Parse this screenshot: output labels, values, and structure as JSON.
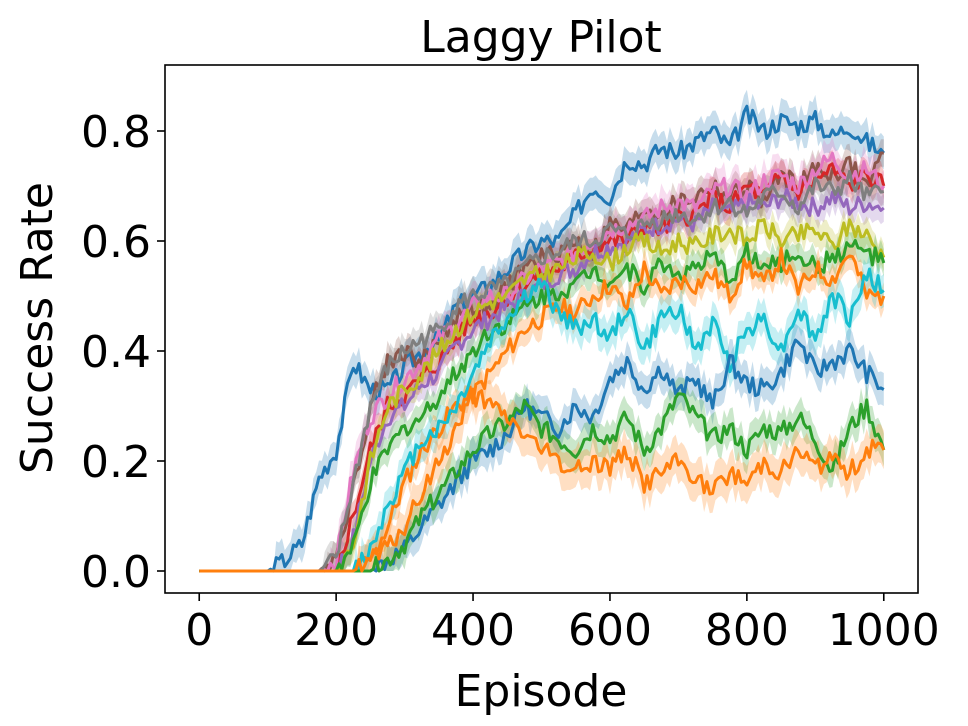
{
  "chart_data": {
    "type": "line",
    "title": "Laggy Pilot",
    "xlabel": "Episode",
    "ylabel": "Success Rate",
    "xlim": [
      -50,
      1050
    ],
    "ylim": [
      -0.04,
      0.92
    ],
    "xticks": [
      0,
      200,
      400,
      600,
      800,
      1000
    ],
    "xtick_labels": [
      "0",
      "200",
      "400",
      "600",
      "800",
      "1000"
    ],
    "yticks": [
      0.0,
      0.2,
      0.4,
      0.6,
      0.8
    ],
    "ytick_labels": [
      "0.0",
      "0.2",
      "0.4",
      "0.6",
      "0.8"
    ],
    "grid": false,
    "legend": "none",
    "shaded_band": "±std",
    "x": [
      0,
      50,
      100,
      125,
      150,
      175,
      200,
      225,
      250,
      275,
      300,
      325,
      350,
      375,
      400,
      425,
      450,
      475,
      500,
      525,
      550,
      575,
      600,
      625,
      650,
      675,
      700,
      725,
      750,
      775,
      800,
      825,
      850,
      875,
      900,
      925,
      950,
      975,
      1000
    ],
    "series": [
      {
        "color": "#1f77b4",
        "values": [
          0,
          0,
          0,
          0.02,
          0.05,
          0.17,
          0.22,
          0.38,
          0.33,
          0.33,
          0.37,
          0.4,
          0.42,
          0.48,
          0.5,
          0.52,
          0.55,
          0.58,
          0.6,
          0.6,
          0.65,
          0.7,
          0.68,
          0.75,
          0.74,
          0.77,
          0.76,
          0.78,
          0.8,
          0.77,
          0.83,
          0.8,
          0.82,
          0.81,
          0.82,
          0.79,
          0.81,
          0.78,
          0.76
        ],
        "band": 0.03
      },
      {
        "color": "#8c564b",
        "values": [
          0,
          0,
          0,
          0,
          0,
          0,
          0.03,
          0.15,
          0.3,
          0.38,
          0.4,
          0.38,
          0.42,
          0.46,
          0.48,
          0.47,
          0.52,
          0.55,
          0.57,
          0.58,
          0.6,
          0.58,
          0.63,
          0.62,
          0.66,
          0.65,
          0.67,
          0.68,
          0.7,
          0.68,
          0.7,
          0.67,
          0.72,
          0.7,
          0.73,
          0.72,
          0.74,
          0.7,
          0.76
        ],
        "band": 0.025
      },
      {
        "color": "#d62728",
        "values": [
          0,
          0,
          0,
          0,
          0,
          0,
          0,
          0.1,
          0.22,
          0.3,
          0.32,
          0.35,
          0.38,
          0.42,
          0.46,
          0.47,
          0.5,
          0.52,
          0.54,
          0.55,
          0.57,
          0.59,
          0.6,
          0.6,
          0.63,
          0.62,
          0.64,
          0.65,
          0.68,
          0.66,
          0.7,
          0.68,
          0.72,
          0.69,
          0.71,
          0.73,
          0.7,
          0.72,
          0.7
        ],
        "band": 0.025
      },
      {
        "color": "#e377c2",
        "values": [
          0,
          0,
          0,
          0,
          0,
          0,
          0.02,
          0.18,
          0.28,
          0.32,
          0.35,
          0.38,
          0.42,
          0.45,
          0.48,
          0.5,
          0.5,
          0.53,
          0.55,
          0.56,
          0.58,
          0.6,
          0.62,
          0.63,
          0.64,
          0.66,
          0.67,
          0.66,
          0.69,
          0.7,
          0.68,
          0.71,
          0.72,
          0.7,
          0.73,
          0.75,
          0.72,
          0.73,
          0.7
        ],
        "band": 0.03
      },
      {
        "color": "#9467bd",
        "values": [
          0,
          0,
          0,
          0,
          0,
          0,
          0,
          0.06,
          0.2,
          0.28,
          0.3,
          0.34,
          0.36,
          0.41,
          0.44,
          0.46,
          0.48,
          0.5,
          0.52,
          0.54,
          0.55,
          0.58,
          0.59,
          0.6,
          0.62,
          0.63,
          0.64,
          0.63,
          0.66,
          0.65,
          0.67,
          0.66,
          0.68,
          0.67,
          0.66,
          0.68,
          0.66,
          0.67,
          0.66
        ],
        "band": 0.025
      },
      {
        "color": "#7f7f7f",
        "values": [
          0,
          0,
          0,
          0,
          0,
          0,
          0.02,
          0.16,
          0.3,
          0.37,
          0.4,
          0.42,
          0.44,
          0.48,
          0.5,
          0.51,
          0.52,
          0.55,
          0.57,
          0.58,
          0.6,
          0.6,
          0.62,
          0.61,
          0.63,
          0.64,
          0.65,
          0.64,
          0.66,
          0.67,
          0.65,
          0.68,
          0.69,
          0.66,
          0.7,
          0.69,
          0.71,
          0.68,
          0.69
        ],
        "band": 0.025
      },
      {
        "color": "#bcbd22",
        "values": [
          0,
          0,
          0,
          0,
          0,
          0,
          0,
          0.05,
          0.2,
          0.3,
          0.33,
          0.36,
          0.4,
          0.44,
          0.47,
          0.49,
          0.5,
          0.53,
          0.54,
          0.55,
          0.57,
          0.58,
          0.56,
          0.59,
          0.6,
          0.58,
          0.6,
          0.59,
          0.61,
          0.62,
          0.6,
          0.63,
          0.6,
          0.61,
          0.62,
          0.59,
          0.63,
          0.61,
          0.57
        ],
        "band": 0.025
      },
      {
        "color": "#2ca02c",
        "values": [
          0,
          0,
          0,
          0,
          0,
          0,
          0,
          0.04,
          0.16,
          0.22,
          0.26,
          0.28,
          0.32,
          0.36,
          0.4,
          0.44,
          0.45,
          0.48,
          0.5,
          0.51,
          0.52,
          0.55,
          0.53,
          0.55,
          0.52,
          0.56,
          0.54,
          0.55,
          0.57,
          0.53,
          0.58,
          0.55,
          0.56,
          0.58,
          0.55,
          0.57,
          0.59,
          0.58,
          0.56
        ],
        "band": 0.025
      },
      {
        "color": "#ff7f0e",
        "values": [
          0,
          0,
          0,
          0,
          0,
          0,
          0,
          0,
          0.02,
          0.08,
          0.16,
          0.22,
          0.26,
          0.3,
          0.32,
          0.36,
          0.4,
          0.44,
          0.46,
          0.48,
          0.47,
          0.5,
          0.52,
          0.48,
          0.55,
          0.5,
          0.53,
          0.52,
          0.54,
          0.5,
          0.56,
          0.52,
          0.57,
          0.51,
          0.55,
          0.53,
          0.58,
          0.5,
          0.5
        ],
        "band": 0.025
      },
      {
        "color": "#17becf",
        "values": [
          0,
          0,
          0,
          0,
          0,
          0,
          0,
          0,
          0.04,
          0.12,
          0.18,
          0.24,
          0.26,
          0.3,
          0.36,
          0.42,
          0.46,
          0.5,
          0.52,
          0.47,
          0.44,
          0.46,
          0.42,
          0.48,
          0.4,
          0.46,
          0.48,
          0.4,
          0.45,
          0.38,
          0.44,
          0.46,
          0.4,
          0.48,
          0.42,
          0.5,
          0.46,
          0.54,
          0.51
        ],
        "band": 0.03
      },
      {
        "color": "#1f77b4",
        "values": [
          0,
          0,
          0,
          0,
          0,
          0,
          0,
          0,
          0,
          0.02,
          0.04,
          0.08,
          0.12,
          0.16,
          0.2,
          0.22,
          0.25,
          0.3,
          0.28,
          0.26,
          0.3,
          0.28,
          0.35,
          0.38,
          0.33,
          0.37,
          0.32,
          0.35,
          0.3,
          0.38,
          0.34,
          0.33,
          0.36,
          0.42,
          0.36,
          0.38,
          0.4,
          0.36,
          0.33
        ],
        "band": 0.03
      },
      {
        "color": "#2ca02c",
        "values": [
          0,
          0,
          0,
          0,
          0,
          0,
          0,
          0,
          0,
          0.02,
          0.05,
          0.1,
          0.14,
          0.18,
          0.22,
          0.25,
          0.27,
          0.3,
          0.26,
          0.24,
          0.22,
          0.26,
          0.24,
          0.28,
          0.22,
          0.26,
          0.32,
          0.28,
          0.24,
          0.26,
          0.22,
          0.26,
          0.25,
          0.28,
          0.24,
          0.18,
          0.26,
          0.3,
          0.22
        ],
        "band": 0.03
      },
      {
        "color": "#ff7f0e",
        "values": [
          0,
          0,
          0,
          0,
          0,
          0,
          0,
          0,
          0.02,
          0.04,
          0.08,
          0.14,
          0.2,
          0.26,
          0.32,
          0.3,
          0.28,
          0.25,
          0.22,
          0.2,
          0.18,
          0.2,
          0.19,
          0.22,
          0.16,
          0.18,
          0.2,
          0.17,
          0.14,
          0.18,
          0.16,
          0.2,
          0.18,
          0.22,
          0.19,
          0.2,
          0.18,
          0.22,
          0.22
        ],
        "band": 0.035
      }
    ]
  }
}
